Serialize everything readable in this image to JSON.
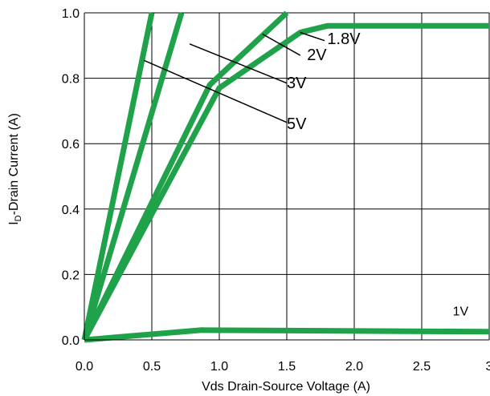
{
  "chart_data": {
    "type": "line",
    "title": "",
    "xlabel": "Vds Drain-Source Voltage (A)",
    "ylabel_main": "I",
    "ylabel_sub": "D",
    "ylabel_rest": "-Drain Current (A)",
    "xlim": [
      0,
      3
    ],
    "ylim": [
      0,
      1.0
    ],
    "x_ticks": [
      "0.0",
      "0.5",
      "1.0",
      "1.5",
      "2.0",
      "2.5",
      "3"
    ],
    "x_tick_values": [
      0,
      0.5,
      1.0,
      1.5,
      2.0,
      2.5,
      3.0
    ],
    "y_ticks": [
      "0.0",
      "0.2",
      "0.4",
      "0.6",
      "0.8",
      "1.0"
    ],
    "y_tick_values": [
      0,
      0.2,
      0.4,
      0.6,
      0.8,
      1.0
    ],
    "grid": true,
    "line_color": "#1fa24a",
    "series": [
      {
        "name": "5V",
        "x": [
          0,
          0.5
        ],
        "y": [
          0,
          1.0
        ]
      },
      {
        "name": "3V",
        "x": [
          0,
          0.72
        ],
        "y": [
          0,
          1.0
        ]
      },
      {
        "name": "2V",
        "x": [
          0,
          0.93,
          1.5
        ],
        "y": [
          0,
          0.78,
          1.0
        ]
      },
      {
        "name": "1.8V",
        "x": [
          0,
          1.0,
          1.6,
          1.8,
          3.0
        ],
        "y": [
          0,
          0.77,
          0.94,
          0.96,
          0.96
        ]
      },
      {
        "name": "1V",
        "x": [
          0,
          0.87,
          3.0
        ],
        "y": [
          0,
          0.03,
          0.025
        ]
      }
    ],
    "annotations": [
      {
        "text": "1.8V",
        "x": 1.8,
        "y": 0.905,
        "lx1": 1.6,
        "ly1": 0.94,
        "lx2": 1.78,
        "ly2": 0.915,
        "size": "large"
      },
      {
        "text": "2V",
        "x": 1.65,
        "y": 0.855,
        "lx1": 1.32,
        "ly1": 0.935,
        "lx2": 1.6,
        "ly2": 0.87,
        "size": "large"
      },
      {
        "text": "3V",
        "x": 1.5,
        "y": 0.77,
        "lx1": 0.78,
        "ly1": 0.905,
        "lx2": 1.5,
        "ly2": 0.785,
        "size": "large"
      },
      {
        "text": "5V",
        "x": 1.5,
        "y": 0.645,
        "lx1": 0.44,
        "ly1": 0.855,
        "lx2": 1.5,
        "ly2": 0.665,
        "size": "large"
      },
      {
        "text": "1V",
        "x": 2.73,
        "y": 0.075,
        "size": "small"
      }
    ]
  }
}
